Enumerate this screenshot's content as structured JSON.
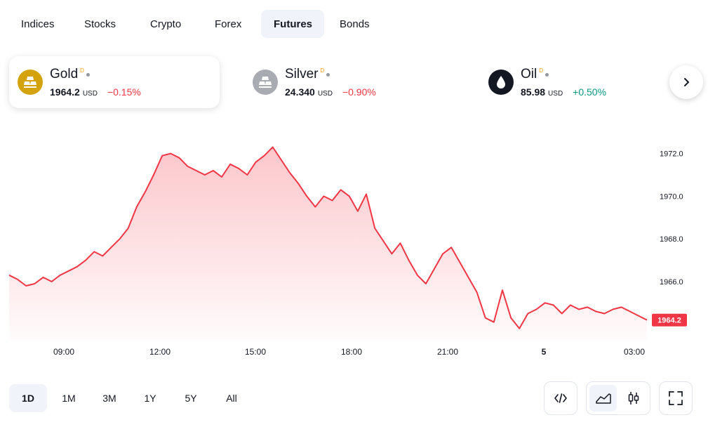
{
  "tabs": [
    {
      "label": "Indices",
      "active": false
    },
    {
      "label": "Stocks",
      "active": false
    },
    {
      "label": "Crypto",
      "active": false
    },
    {
      "label": "Forex",
      "active": false
    },
    {
      "label": "Futures",
      "active": true
    },
    {
      "label": "Bonds",
      "active": false
    }
  ],
  "symbols": [
    {
      "name": "Gold",
      "badge": "D",
      "price": "1964.2",
      "currency": "USD",
      "change": "−0.15%",
      "direction": "negative",
      "icon": "gold-bars-icon",
      "icon_color": "#d4a20a"
    },
    {
      "name": "Silver",
      "badge": "D",
      "price": "24.340",
      "currency": "USD",
      "change": "−0.90%",
      "direction": "negative",
      "icon": "silver-bars-icon",
      "icon_color": "#a9abb3"
    },
    {
      "name": "Oil",
      "badge": "D",
      "price": "85.98",
      "currency": "USD",
      "change": "+0.50%",
      "direction": "positive",
      "icon": "oil-drop-icon",
      "icon_color": "#131722"
    }
  ],
  "next_button_icon": "chevron-right-icon",
  "colors": {
    "line": "#f23645",
    "positive": "#089981",
    "negative": "#f23645",
    "active_bg": "#f0f3fa"
  },
  "chart_data": {
    "type": "area",
    "symbol": "Gold",
    "x_tick_labels": [
      "09:00",
      "12:00",
      "15:00",
      "18:00",
      "21:00",
      "5",
      "03:00"
    ],
    "y_tick_labels": [
      "1966.0",
      "1968.0",
      "1970.0",
      "1972.0"
    ],
    "ylim": [
      1963.3,
      1973.6
    ],
    "last_price_label": "1964.2",
    "series": [
      {
        "values": [
          1966.3,
          1966.1,
          1965.8,
          1965.9,
          1966.2,
          1966.0,
          1966.3,
          1966.5,
          1966.7,
          1967.0,
          1967.4,
          1967.2,
          1967.6,
          1968.0,
          1968.5,
          1969.5,
          1970.2,
          1971.0,
          1971.9,
          1972.0,
          1971.8,
          1971.4,
          1971.2,
          1971.0,
          1971.2,
          1970.9,
          1971.5,
          1971.3,
          1971.0,
          1971.6,
          1971.9,
          1972.3,
          1971.7,
          1971.1,
          1970.6,
          1970.0,
          1969.5,
          1970.0,
          1969.8,
          1970.3,
          1970.0,
          1969.3,
          1970.1,
          1968.5,
          1967.9,
          1967.3,
          1967.8,
          1967.0,
          1966.3,
          1965.9,
          1966.6,
          1967.3,
          1967.6,
          1966.9,
          1966.2,
          1965.5,
          1964.3,
          1964.1,
          1965.6,
          1964.3,
          1963.8,
          1964.5,
          1964.7,
          1965.0,
          1964.9,
          1964.5,
          1964.9,
          1964.7,
          1964.8,
          1964.6,
          1964.5,
          1964.7,
          1964.8,
          1964.6,
          1964.4,
          1964.2
        ]
      }
    ]
  },
  "time_ranges": [
    {
      "label": "1D",
      "active": true
    },
    {
      "label": "1M",
      "active": false
    },
    {
      "label": "3M",
      "active": false
    },
    {
      "label": "1Y",
      "active": false
    },
    {
      "label": "5Y",
      "active": false
    },
    {
      "label": "All",
      "active": false
    }
  ],
  "toolbar": {
    "embed_icon": "code-embed-icon",
    "area_icon": "area-chart-icon",
    "candles_icon": "candlestick-icon",
    "fullscreen_icon": "fullscreen-icon"
  }
}
